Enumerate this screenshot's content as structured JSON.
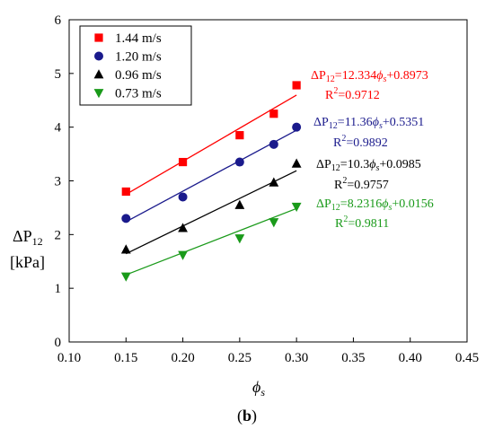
{
  "chart_data": {
    "type": "scatter",
    "xlabel": "ϕs",
    "ylabel": "ΔP12 [kPa]",
    "ylabel_lines": [
      "ΔP",
      "12",
      "[kPa]"
    ],
    "xlabel_parts": {
      "main": "ϕ",
      "sub": "s"
    },
    "xlim": [
      0.1,
      0.45
    ],
    "ylim": [
      0,
      6
    ],
    "x_ticks": [
      "0.10",
      "0.15",
      "0.20",
      "0.25",
      "0.30",
      "0.35",
      "0.40",
      "0.45"
    ],
    "y_ticks": [
      "0",
      "1",
      "2",
      "3",
      "4",
      "5",
      "6"
    ],
    "grid": false,
    "legend_position": "top-left",
    "panel_label": {
      "open": "(",
      "letter": "b",
      "close": ")"
    },
    "series": [
      {
        "name": "1.44 m/s",
        "marker": "square",
        "color": "#ff0000",
        "x": [
          0.15,
          0.2,
          0.25,
          0.28,
          0.3
        ],
        "y": [
          2.8,
          3.35,
          3.85,
          4.25,
          4.78
        ],
        "fit": {
          "slope": 12.334,
          "intercept": 0.8973
        },
        "equation": {
          "lhs": "ΔP",
          "lhs_sub": "12",
          "eq": "=12.334",
          "phi": "ϕ",
          "phi_sub": "s",
          "rest": "+0.8973",
          "r2_prefix": "R",
          "r2_sup": "2",
          "r2_value": "=0.9712"
        }
      },
      {
        "name": "1.20 m/s",
        "marker": "circle",
        "color": "#1a1a8c",
        "x": [
          0.15,
          0.2,
          0.25,
          0.28,
          0.3
        ],
        "y": [
          2.3,
          2.7,
          3.35,
          3.68,
          4.0
        ],
        "fit": {
          "slope": 11.36,
          "intercept": 0.5351
        },
        "equation": {
          "lhs": "ΔP",
          "lhs_sub": "12",
          "eq": "=11.36",
          "phi": "ϕ",
          "phi_sub": "s",
          "rest": "+0.5351",
          "r2_prefix": "R",
          "r2_sup": "2",
          "r2_value": "=0.9892"
        }
      },
      {
        "name": "0.96 m/s",
        "marker": "triangle-up",
        "color": "#000000",
        "x": [
          0.15,
          0.2,
          0.25,
          0.28,
          0.3
        ],
        "y": [
          1.72,
          2.12,
          2.55,
          2.97,
          3.32
        ],
        "fit": {
          "slope": 10.3,
          "intercept": 0.0985
        },
        "equation": {
          "lhs": "ΔP",
          "lhs_sub": "12",
          "eq": "=10.3",
          "phi": "ϕ",
          "phi_sub": "s",
          "rest": "+0.0985",
          "r2_prefix": "R",
          "r2_sup": "2",
          "r2_value": "=0.9757"
        }
      },
      {
        "name": "0.73 m/s",
        "marker": "triangle-down",
        "color": "#1a9a1a",
        "x": [
          0.15,
          0.2,
          0.25,
          0.28,
          0.3
        ],
        "y": [
          1.22,
          1.62,
          1.93,
          2.23,
          2.52
        ],
        "fit": {
          "slope": 8.2316,
          "intercept": 0.0156
        },
        "equation": {
          "lhs": "ΔP",
          "lhs_sub": "12",
          "eq": "=8.2316",
          "phi": "ϕ",
          "phi_sub": "s",
          "rest": "+0.0156",
          "r2_prefix": "R",
          "r2_sup": "2",
          "r2_value": "=0.9811"
        }
      }
    ]
  }
}
